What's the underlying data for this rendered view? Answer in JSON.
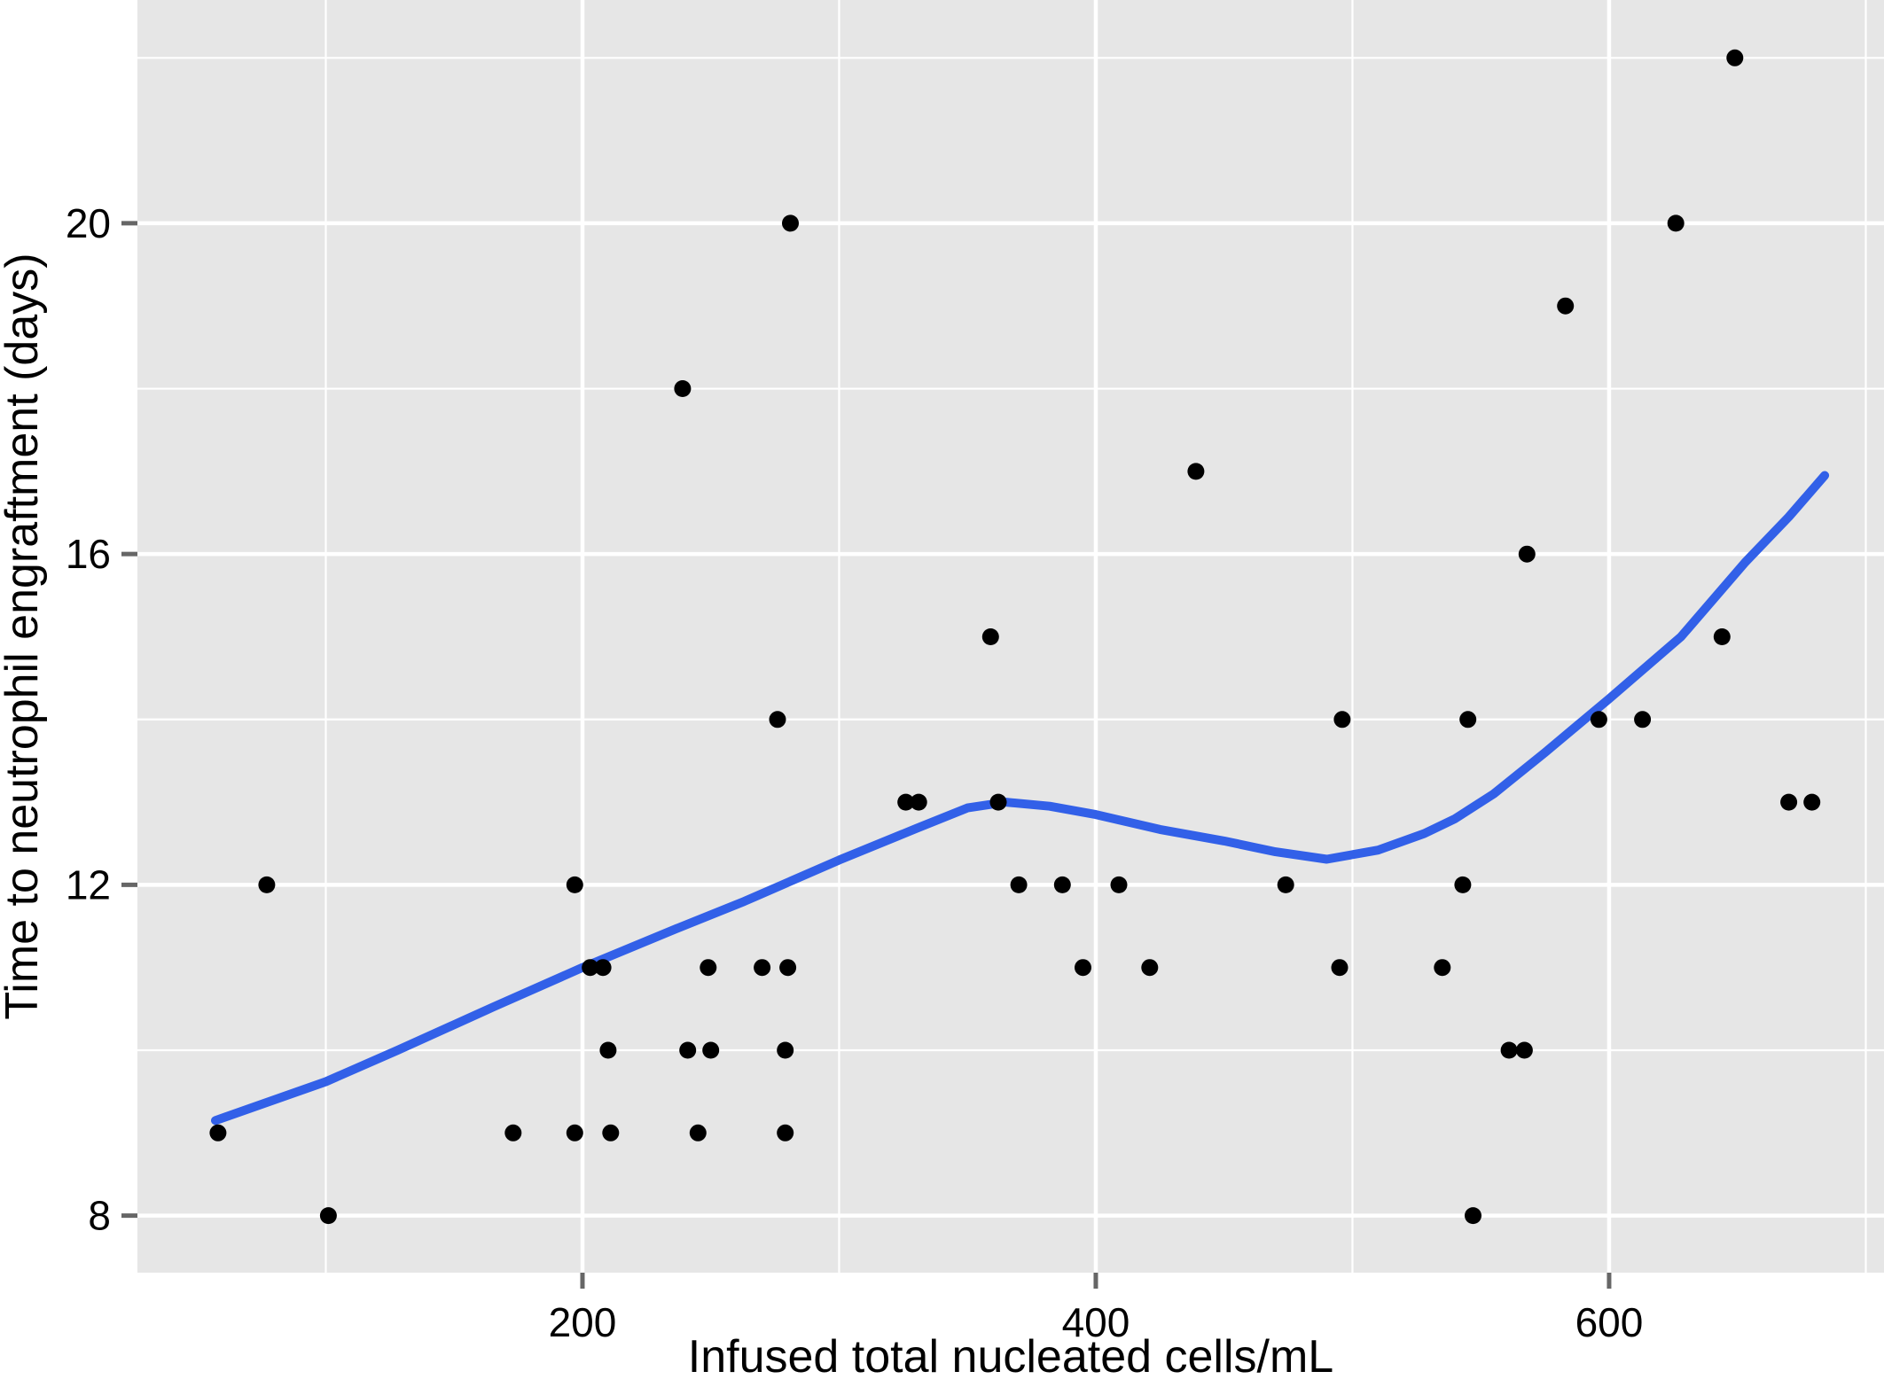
{
  "chart_data": {
    "type": "scatter",
    "title": "",
    "xlabel": "Infused total nucleated cells/mL",
    "ylabel": "Time to neutrophil engraftment (days)",
    "x_ticks": [
      200,
      400,
      600
    ],
    "y_ticks": [
      8,
      12,
      16,
      20
    ],
    "x_minor_gridlines": [
      100,
      300,
      500,
      700
    ],
    "y_minor_gridlines": [
      10,
      14,
      18,
      22
    ],
    "xlim": [
      26.6,
      707.1
    ],
    "ylim": [
      7.31,
      22.7
    ],
    "grid": true,
    "legend": "none",
    "points": [
      [
        58,
        9
      ],
      [
        77,
        12
      ],
      [
        101,
        8
      ],
      [
        173,
        9
      ],
      [
        197,
        9
      ],
      [
        197,
        12
      ],
      [
        203,
        11
      ],
      [
        208,
        11
      ],
      [
        210,
        10
      ],
      [
        211,
        9
      ],
      [
        239,
        18
      ],
      [
        241,
        10
      ],
      [
        245,
        9
      ],
      [
        249,
        11
      ],
      [
        250,
        10
      ],
      [
        270,
        11
      ],
      [
        276,
        14
      ],
      [
        279,
        9
      ],
      [
        279,
        10
      ],
      [
        280,
        11
      ],
      [
        281,
        20
      ],
      [
        326,
        13
      ],
      [
        331,
        13
      ],
      [
        359,
        15
      ],
      [
        362,
        13
      ],
      [
        370,
        12
      ],
      [
        387,
        12
      ],
      [
        395,
        11
      ],
      [
        409,
        12
      ],
      [
        421,
        11
      ],
      [
        439,
        17
      ],
      [
        474,
        12
      ],
      [
        495,
        11
      ],
      [
        496,
        14
      ],
      [
        535,
        11
      ],
      [
        543,
        12
      ],
      [
        545,
        14
      ],
      [
        547,
        8
      ],
      [
        561,
        10
      ],
      [
        567,
        10
      ],
      [
        568,
        16
      ],
      [
        583,
        19
      ],
      [
        596,
        14
      ],
      [
        613,
        14
      ],
      [
        626,
        20
      ],
      [
        644,
        15
      ],
      [
        649,
        22
      ],
      [
        670,
        13
      ],
      [
        679,
        13
      ]
    ],
    "smooth_line": [
      [
        57,
        9.15
      ],
      [
        100,
        9.62
      ],
      [
        128,
        10.0
      ],
      [
        165,
        10.52
      ],
      [
        200,
        11.0
      ],
      [
        235,
        11.45
      ],
      [
        263,
        11.8
      ],
      [
        300,
        12.3
      ],
      [
        330,
        12.68
      ],
      [
        350,
        12.93
      ],
      [
        365,
        13.0
      ],
      [
        382,
        12.95
      ],
      [
        400,
        12.85
      ],
      [
        425,
        12.67
      ],
      [
        450,
        12.53
      ],
      [
        470,
        12.4
      ],
      [
        490,
        12.31
      ],
      [
        510,
        12.42
      ],
      [
        528,
        12.62
      ],
      [
        540,
        12.8
      ],
      [
        555,
        13.1
      ],
      [
        575,
        13.6
      ],
      [
        600,
        14.25
      ],
      [
        628,
        15.0
      ],
      [
        653,
        15.9
      ],
      [
        670,
        16.45
      ],
      [
        684,
        16.95
      ]
    ],
    "colors": {
      "panel_bg": "#E6E6E6",
      "grid": "#FFFFFF",
      "point": "#000000",
      "smooth_line": "#3260E8",
      "tick_mark": "#666666",
      "tick_label": "#000000",
      "axis_title": "#000000"
    }
  }
}
